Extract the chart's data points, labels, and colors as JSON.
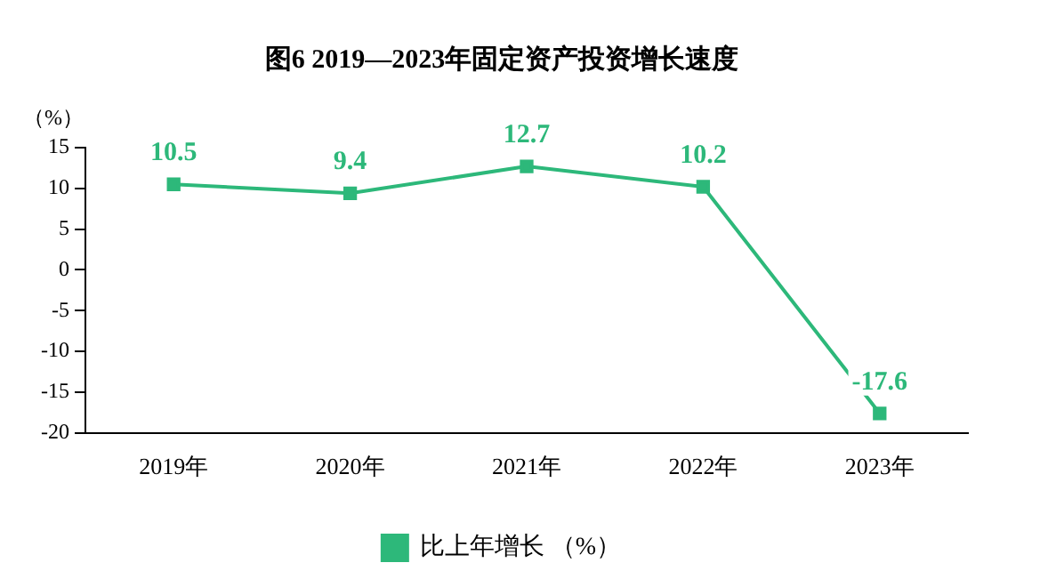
{
  "chart_data": {
    "type": "line",
    "title": "图6 2019—2023年固定资产投资增长速度",
    "ylabel": "（%）",
    "categories": [
      "2019年",
      "2020年",
      "2021年",
      "2022年",
      "2023年"
    ],
    "series": [
      {
        "name": "比上年增长 （%）",
        "color": "#2db87a",
        "values": [
          10.5,
          9.4,
          12.7,
          10.2,
          -17.6
        ]
      }
    ],
    "ylim": [
      -20,
      15
    ],
    "yticks": [
      -20,
      -15,
      -10,
      -5,
      0,
      5,
      10,
      15
    ],
    "grid": false,
    "legend": "bottom",
    "marker": "square",
    "line_style": "solid",
    "data_labels": true
  }
}
